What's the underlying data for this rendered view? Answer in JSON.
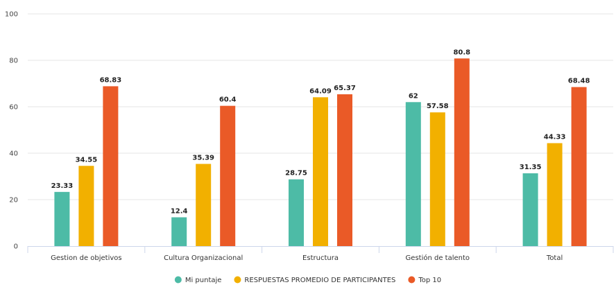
{
  "chart_data": {
    "type": "bar",
    "categories": [
      "Gestion de objetivos",
      "Cultura Organizacional",
      "Estructura",
      "Gestión de talento",
      "Total"
    ],
    "series": [
      {
        "name": "Mi puntaje",
        "color": "#4dbba6",
        "values": [
          23.33,
          12.4,
          28.75,
          62,
          31.35
        ],
        "labels": [
          "23.33",
          "12.4",
          "28.75",
          "62",
          "31.35"
        ]
      },
      {
        "name": "RESPUESTAS PROMEDIO DE PARTICIPANTES",
        "color": "#f2b000",
        "values": [
          34.55,
          35.39,
          64.09,
          57.58,
          44.33
        ],
        "labels": [
          "34.55",
          "35.39",
          "64.09",
          "57.58",
          "44.33"
        ]
      },
      {
        "name": "Top 10",
        "color": "#ea5a27",
        "values": [
          68.83,
          60.4,
          65.37,
          80.8,
          68.48
        ],
        "labels": [
          "68.83",
          "60.4",
          "65.37",
          "80.8",
          "68.48"
        ]
      }
    ],
    "yticks": [
      "0",
      "20",
      "40",
      "60",
      "80",
      "100"
    ],
    "ylim": [
      0,
      100
    ],
    "grid": true,
    "legend_position": "bottom-center"
  }
}
